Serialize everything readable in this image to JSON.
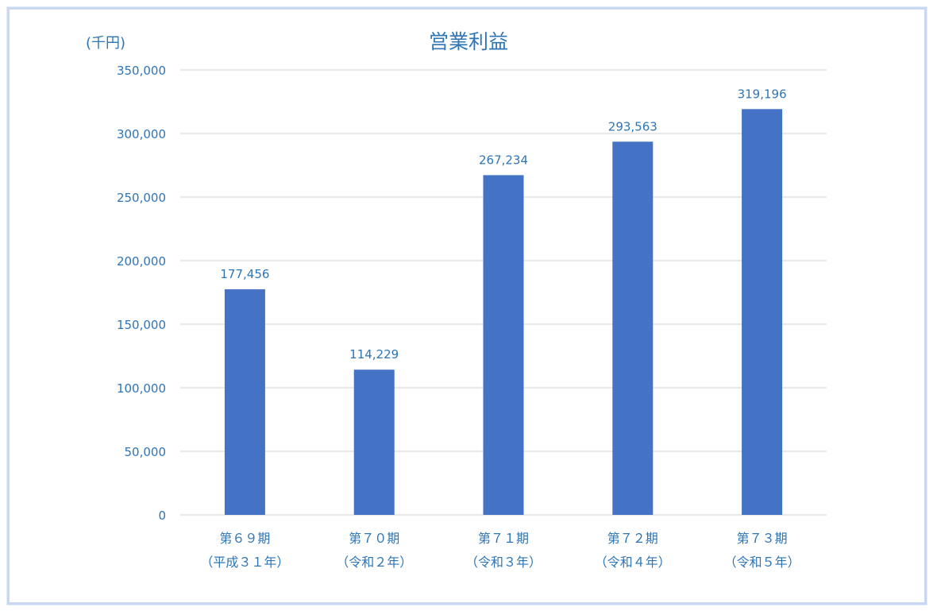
{
  "chart_data": {
    "type": "bar",
    "title": "営業利益",
    "unit_label": "(千円)",
    "categories": [
      [
        "第６９期",
        "（平成３１年）"
      ],
      [
        "第７０期",
        "（令和２年）"
      ],
      [
        "第７１期",
        "（令和３年）"
      ],
      [
        "第７２期",
        "（令和４年）"
      ],
      [
        "第７３期",
        "（令和５年）"
      ]
    ],
    "values": [
      177456,
      114229,
      267234,
      293563,
      319196
    ],
    "value_labels": [
      "177,456",
      "114,229",
      "267,234",
      "293,563",
      "319,196"
    ],
    "ylim": [
      0,
      350000
    ],
    "yticks": [
      0,
      50000,
      100000,
      150000,
      200000,
      250000,
      300000,
      350000
    ],
    "ytick_labels": [
      "0",
      "50,000",
      "100,000",
      "150,000",
      "200,000",
      "250,000",
      "300,000",
      "350,000"
    ],
    "grid": true,
    "colors": {
      "bar": "#4472c4",
      "text": "#2e75b6",
      "grid": "#d9d9d9",
      "frame": "#c9d7f2"
    }
  }
}
